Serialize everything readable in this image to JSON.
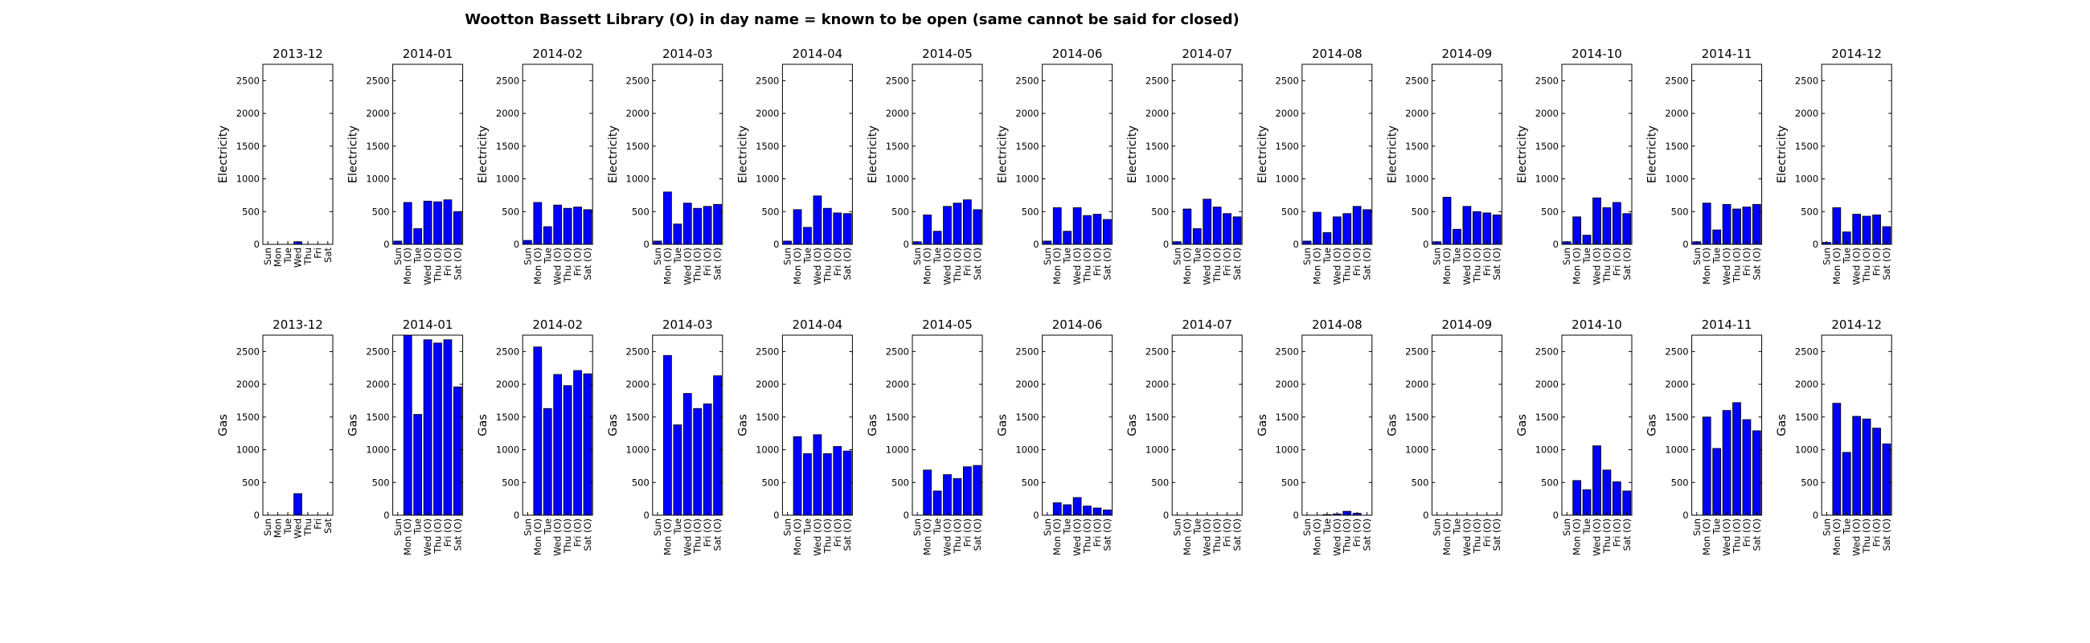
{
  "chart_data": {
    "type": "bar",
    "title": "Wootton Bassett Library (O) in day name = known to be open (same cannot be said for closed)",
    "colors": {
      "bar": "#0000ff",
      "edge": "#000000"
    },
    "ylim": [
      0,
      2750
    ],
    "yticks": [
      0,
      500,
      1000,
      1500,
      2000,
      2500
    ],
    "grid": false,
    "rows": [
      {
        "ylabel": "Electricity",
        "panels": [
          {
            "title": "2013-12",
            "categories": [
              "Sun",
              "Mon",
              "Tue",
              "Wed",
              "Thu",
              "Fri",
              "Sat"
            ],
            "values": [
              0,
              0,
              0,
              40,
              0,
              0,
              0
            ]
          },
          {
            "title": "2014-01",
            "categories": [
              "Sun",
              "Mon (O)",
              "Tue",
              "Wed (O)",
              "Thu (O)",
              "Fri (O)",
              "Sat (O)"
            ],
            "values": [
              50,
              640,
              240,
              660,
              650,
              680,
              500
            ]
          },
          {
            "title": "2014-02",
            "categories": [
              "Sun",
              "Mon (O)",
              "Tue",
              "Wed (O)",
              "Thu (O)",
              "Fri (O)",
              "Sat (O)"
            ],
            "values": [
              60,
              640,
              270,
              600,
              550,
              570,
              530
            ]
          },
          {
            "title": "2014-03",
            "categories": [
              "Sun",
              "Mon (O)",
              "Tue",
              "Wed (O)",
              "Thu (O)",
              "Fri (O)",
              "Sat (O)"
            ],
            "values": [
              50,
              800,
              310,
              630,
              550,
              580,
              610
            ]
          },
          {
            "title": "2014-04",
            "categories": [
              "Sun",
              "Mon (O)",
              "Tue",
              "Wed (O)",
              "Thu (O)",
              "Fri (O)",
              "Sat (O)"
            ],
            "values": [
              50,
              530,
              260,
              740,
              550,
              480,
              470
            ]
          },
          {
            "title": "2014-05",
            "categories": [
              "Sun",
              "Mon (O)",
              "Tue",
              "Wed (O)",
              "Thu (O)",
              "Fri (O)",
              "Sat (O)"
            ],
            "values": [
              40,
              450,
              200,
              580,
              630,
              680,
              530
            ]
          },
          {
            "title": "2014-06",
            "categories": [
              "Sun",
              "Mon (O)",
              "Tue",
              "Wed (O)",
              "Thu (O)",
              "Fri (O)",
              "Sat (O)"
            ],
            "values": [
              50,
              560,
              200,
              560,
              440,
              460,
              380
            ]
          },
          {
            "title": "2014-07",
            "categories": [
              "Sun",
              "Mon (O)",
              "Tue",
              "Wed (O)",
              "Thu (O)",
              "Fri (O)",
              "Sat (O)"
            ],
            "values": [
              40,
              540,
              240,
              690,
              570,
              470,
              420
            ]
          },
          {
            "title": "2014-08",
            "categories": [
              "Sun",
              "Mon (O)",
              "Tue",
              "Wed (O)",
              "Thu (O)",
              "Fri (O)",
              "Sat (O)"
            ],
            "values": [
              50,
              490,
              180,
              420,
              470,
              580,
              530
            ]
          },
          {
            "title": "2014-09",
            "categories": [
              "Sun",
              "Mon (O)",
              "Tue",
              "Wed (O)",
              "Thu (O)",
              "Fri (O)",
              "Sat (O)"
            ],
            "values": [
              40,
              720,
              230,
              580,
              500,
              480,
              450
            ]
          },
          {
            "title": "2014-10",
            "categories": [
              "Sun",
              "Mon (O)",
              "Tue",
              "Wed (O)",
              "Thu (O)",
              "Fri (O)",
              "Sat (O)"
            ],
            "values": [
              40,
              420,
              140,
              710,
              560,
              640,
              470
            ]
          },
          {
            "title": "2014-11",
            "categories": [
              "Sun",
              "Mon (O)",
              "Tue",
              "Wed (O)",
              "Thu (O)",
              "Fri (O)",
              "Sat (O)"
            ],
            "values": [
              40,
              630,
              220,
              610,
              540,
              570,
              610
            ]
          },
          {
            "title": "2014-12",
            "categories": [
              "Sun",
              "Mon (O)",
              "Tue",
              "Wed (O)",
              "Thu (O)",
              "Fri (O)",
              "Sat (O)"
            ],
            "values": [
              30,
              560,
              190,
              460,
              430,
              450,
              270
            ]
          }
        ]
      },
      {
        "ylabel": "Gas",
        "panels": [
          {
            "title": "2013-12",
            "categories": [
              "Sun",
              "Mon",
              "Tue",
              "Wed",
              "Thu",
              "Fri",
              "Sat"
            ],
            "values": [
              0,
              0,
              0,
              330,
              0,
              0,
              0
            ]
          },
          {
            "title": "2014-01",
            "categories": [
              "Sun",
              "Mon (O)",
              "Tue",
              "Wed (O)",
              "Thu (O)",
              "Fri (O)",
              "Sat (O)"
            ],
            "values": [
              0,
              2750,
              1540,
              2680,
              2630,
              2680,
              1960
            ]
          },
          {
            "title": "2014-02",
            "categories": [
              "Sun",
              "Mon (O)",
              "Tue",
              "Wed (O)",
              "Thu (O)",
              "Fri (O)",
              "Sat (O)"
            ],
            "values": [
              0,
              2570,
              1630,
              2150,
              1980,
              2210,
              2160
            ]
          },
          {
            "title": "2014-03",
            "categories": [
              "Sun",
              "Mon (O)",
              "Tue",
              "Wed (O)",
              "Thu (O)",
              "Fri (O)",
              "Sat (O)"
            ],
            "values": [
              0,
              2440,
              1380,
              1860,
              1630,
              1700,
              2130
            ]
          },
          {
            "title": "2014-04",
            "categories": [
              "Sun",
              "Mon (O)",
              "Tue",
              "Wed (O)",
              "Thu (O)",
              "Fri (O)",
              "Sat (O)"
            ],
            "values": [
              0,
              1200,
              940,
              1230,
              940,
              1050,
              980
            ]
          },
          {
            "title": "2014-05",
            "categories": [
              "Sun",
              "Mon (O)",
              "Tue",
              "Wed (O)",
              "Thu (O)",
              "Fri (O)",
              "Sat (O)"
            ],
            "values": [
              0,
              690,
              370,
              620,
              560,
              740,
              760
            ]
          },
          {
            "title": "2014-06",
            "categories": [
              "Sun",
              "Mon (O)",
              "Tue",
              "Wed (O)",
              "Thu (O)",
              "Fri (O)",
              "Sat (O)"
            ],
            "values": [
              0,
              190,
              160,
              270,
              140,
              110,
              80
            ]
          },
          {
            "title": "2014-07",
            "categories": [
              "Sun",
              "Mon (O)",
              "Tue",
              "Wed (O)",
              "Thu (O)",
              "Fri (O)",
              "Sat (O)"
            ],
            "values": [
              0,
              0,
              0,
              0,
              0,
              0,
              0
            ]
          },
          {
            "title": "2014-08",
            "categories": [
              "Sun",
              "Mon (O)",
              "Tue",
              "Wed (O)",
              "Thu (O)",
              "Fri (O)",
              "Sat (O)"
            ],
            "values": [
              0,
              0,
              10,
              20,
              60,
              30,
              0
            ]
          },
          {
            "title": "2014-09",
            "categories": [
              "Sun",
              "Mon (O)",
              "Tue",
              "Wed (O)",
              "Thu (O)",
              "Fri (O)",
              "Sat (O)"
            ],
            "values": [
              0,
              0,
              0,
              0,
              0,
              0,
              0
            ]
          },
          {
            "title": "2014-10",
            "categories": [
              "Sun",
              "Mon (O)",
              "Tue",
              "Wed (O)",
              "Thu (O)",
              "Fri (O)",
              "Sat (O)"
            ],
            "values": [
              0,
              530,
              390,
              1060,
              690,
              510,
              370
            ]
          },
          {
            "title": "2014-11",
            "categories": [
              "Sun",
              "Mon (O)",
              "Tue",
              "Wed (O)",
              "Thu (O)",
              "Fri (O)",
              "Sat (O)"
            ],
            "values": [
              0,
              1500,
              1020,
              1600,
              1720,
              1460,
              1290
            ]
          },
          {
            "title": "2014-12",
            "categories": [
              "Sun",
              "Mon (O)",
              "Tue",
              "Wed (O)",
              "Thu (O)",
              "Fri (O)",
              "Sat (O)"
            ],
            "values": [
              0,
              1710,
              960,
              1510,
              1470,
              1330,
              1090
            ]
          }
        ]
      }
    ]
  }
}
